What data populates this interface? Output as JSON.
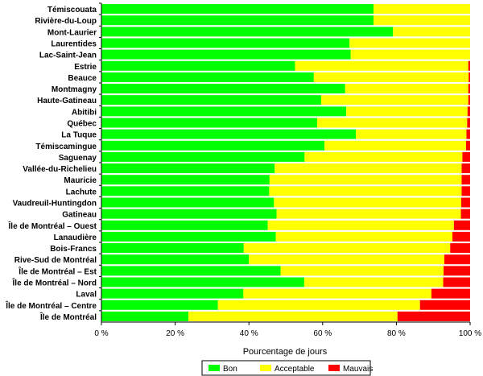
{
  "chart_data": {
    "type": "bar",
    "orientation": "horizontal",
    "stacked": true,
    "normalized_percent": true,
    "xlabel": "Pourcentage de jours",
    "xlim": [
      0,
      100
    ],
    "x_ticks": [
      0,
      20,
      40,
      60,
      80,
      100
    ],
    "x_tick_labels": [
      "0 %",
      "20 %",
      "40 %",
      "60 %",
      "80 %",
      "100 %"
    ],
    "grid": false,
    "legend_position": "bottom",
    "categories": [
      "Témiscouata",
      "Rivière-du-Loup",
      "Mont-Laurier",
      "Laurentides",
      "Lac-Saint-Jean",
      "Estrie",
      "Beauce",
      "Montmagny",
      "Haute-Gatineau",
      "Abitibi",
      "Québec",
      "La Tuque",
      "Témiscamingue",
      "Saguenay",
      "Vallée-du-Richelieu",
      "Mauricie",
      "Lachute",
      "Vaudreuil-Huntingdon",
      "Gatineau",
      "Île de Montréal – Ouest",
      "Lanaudière",
      "Bois-Francs",
      "Rive-Sud de Montréal",
      "Île de Montréal – Est",
      "Île de Montréal – Nord",
      "Laval",
      "Île de Montréal – Centre",
      "Île de Montréal"
    ],
    "series": [
      {
        "name": "Bon",
        "color": "#00ff00",
        "values": [
          73.8,
          73.8,
          79.1,
          67.3,
          67.6,
          52.5,
          57.6,
          66.1,
          59.6,
          66.4,
          58.5,
          69.0,
          60.5,
          55.1,
          47.0,
          45.6,
          45.5,
          46.8,
          47.5,
          45.1,
          47.3,
          38.6,
          40.0,
          48.6,
          55.0,
          38.5,
          31.6,
          23.6
        ]
      },
      {
        "name": "Acceptable",
        "color": "#ffff00",
        "values": [
          26.2,
          26.2,
          20.9,
          32.7,
          32.4,
          47.0,
          42.0,
          33.4,
          39.9,
          32.9,
          40.7,
          30.0,
          38.4,
          42.8,
          50.7,
          52.1,
          52.2,
          50.8,
          50.0,
          50.5,
          47.9,
          56.0,
          53.0,
          44.2,
          37.7,
          51.0,
          54.8,
          56.7
        ]
      },
      {
        "name": "Mauvais",
        "color": "#ff0000",
        "values": [
          0.0,
          0.0,
          0.0,
          0.0,
          0.0,
          0.5,
          0.4,
          0.5,
          0.5,
          0.7,
          0.8,
          1.0,
          1.1,
          2.1,
          2.3,
          2.3,
          2.3,
          2.4,
          2.5,
          4.4,
          4.8,
          5.4,
          7.0,
          7.2,
          7.3,
          10.5,
          13.6,
          19.7
        ]
      }
    ]
  }
}
